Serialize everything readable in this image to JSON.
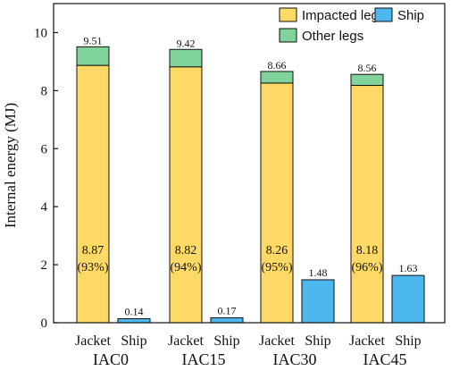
{
  "chart_data": {
    "type": "bar",
    "ylabel": "Internal energy (MJ)",
    "ylim": [
      0,
      11
    ],
    "yticks": [
      0,
      2,
      4,
      6,
      8,
      10
    ],
    "groups": [
      "IAC0",
      "IAC15",
      "IAC30",
      "IAC45"
    ],
    "sub_categories": [
      "Jacket",
      "Ship"
    ],
    "legend": {
      "placement": "top-right",
      "entries": [
        "Impacted leg",
        "Ship",
        "Other legs"
      ]
    },
    "series": [
      {
        "name": "Impacted leg",
        "color": "#FFD966",
        "values": [
          8.87,
          8.82,
          8.26,
          8.18
        ],
        "percent_labels": [
          "(93%)",
          "(94%)",
          "(95%)",
          "(96%)"
        ]
      },
      {
        "name": "Other legs",
        "color": "#7FD39B",
        "values": [
          0.64,
          0.6,
          0.4,
          0.38
        ]
      },
      {
        "name": "Ship",
        "color": "#4DB8F0",
        "values": [
          0.14,
          0.17,
          1.48,
          1.63
        ]
      }
    ],
    "labels": {
      "impacted": [
        "8.87",
        "8.82",
        "8.26",
        "8.18"
      ],
      "jacket_total": [
        "9.51",
        "9.42",
        "8.66",
        "8.56"
      ],
      "ship": [
        "0.14",
        "0.17",
        "1.48",
        "1.63"
      ]
    },
    "jacket_totals": [
      9.51,
      9.42,
      8.66,
      8.56
    ]
  }
}
